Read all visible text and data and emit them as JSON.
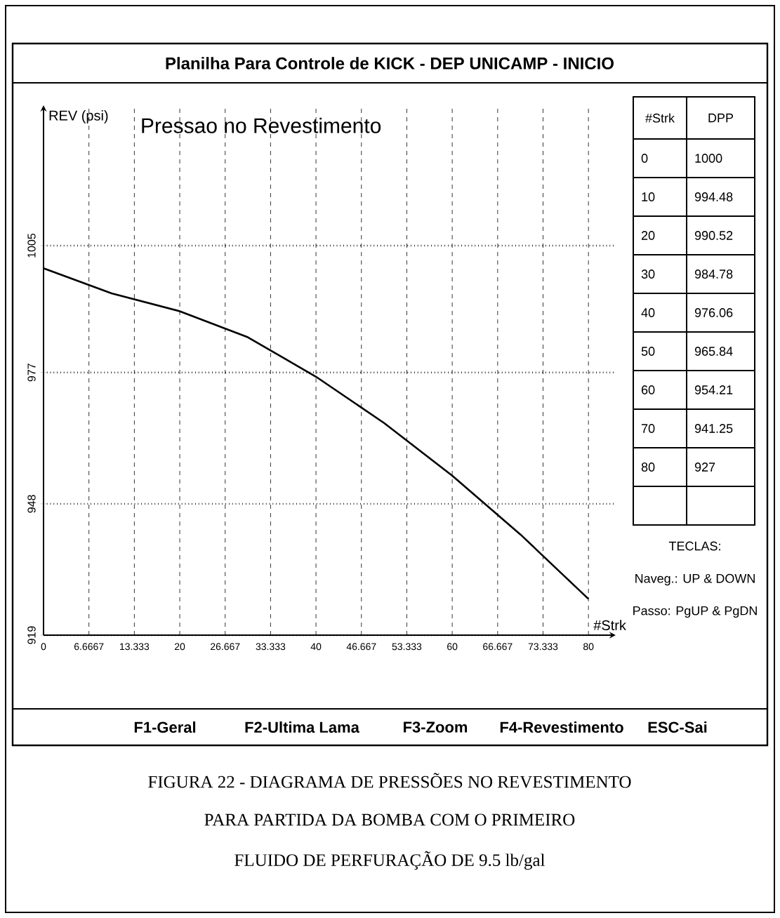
{
  "chart_data": {
    "type": "line",
    "title": "Planilha Para Controle de KICK - DEP UNICAMP - INICIO",
    "subtitle": "Pressao no Revestimento",
    "xlabel": "#Strk",
    "ylabel": "REV (psi)",
    "x": [
      0,
      10,
      20,
      30,
      40,
      50,
      60,
      70,
      80
    ],
    "series": [
      {
        "color": "#000000",
        "values": [
          1000,
          994.48,
          990.52,
          984.78,
          976.06,
          965.84,
          954.21,
          941.25,
          927
        ]
      }
    ],
    "xlim": [
      0,
      84
    ],
    "xticks": [
      0,
      6.6667,
      13.333,
      20,
      26.667,
      33.333,
      40,
      46.667,
      53.333,
      60,
      66.667,
      73.333,
      80
    ],
    "ylim": [
      919,
      1036
    ],
    "yticks": [
      919,
      948,
      977,
      1005
    ],
    "grid": true,
    "line_style": "solid",
    "marker": "none",
    "annotations": [
      "#Strk",
      "DPP",
      "TECLAS:",
      "Naveg.: UP & DOWN",
      "Passo: PgUP & PgDN",
      "F1-Geral",
      "F2-Ultima Lama",
      "F3-Zoom",
      "F4-Revestimento",
      "ESC-Sai",
      "FIGURA 22 - DIAGRAMA DE PRESSÕES NO REVESTIMENTO",
      "PARA PARTIDA DA BOMBA COM O PRIMEIRO",
      "FLUIDO DE PERFURAÇÃO DE 9.5 lb/gal",
      "0",
      "1000",
      "10",
      "994.48",
      "20",
      "990.52",
      "30",
      "984.78",
      "40",
      "976.06",
      "50",
      "965.84",
      "60",
      "954.21",
      "70",
      "941.25",
      "80",
      "927"
    ]
  }
}
